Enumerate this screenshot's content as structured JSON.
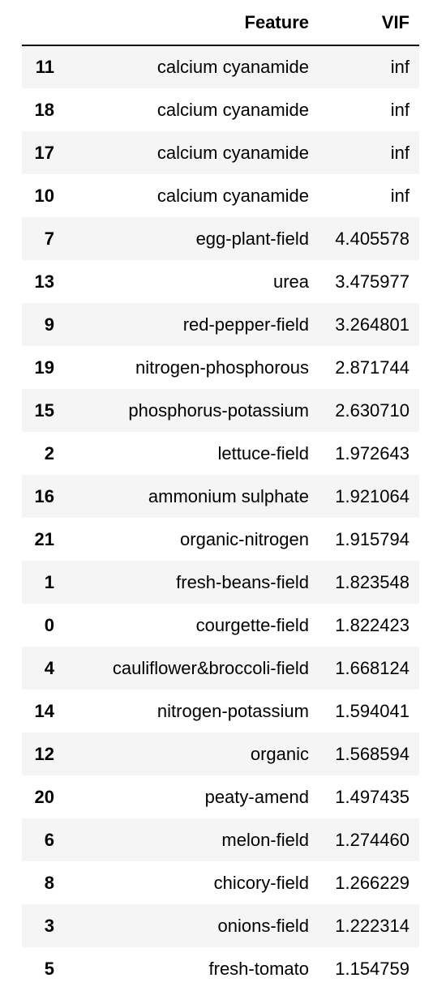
{
  "table": {
    "headers": {
      "index": "",
      "feature": "Feature",
      "vif": "VIF"
    },
    "rows": [
      {
        "index": "11",
        "feature": "calcium cyanamide",
        "vif": "inf"
      },
      {
        "index": "18",
        "feature": "calcium cyanamide",
        "vif": "inf"
      },
      {
        "index": "17",
        "feature": "calcium cyanamide",
        "vif": "inf"
      },
      {
        "index": "10",
        "feature": "calcium cyanamide",
        "vif": "inf"
      },
      {
        "index": "7",
        "feature": "egg-plant-field",
        "vif": "4.405578"
      },
      {
        "index": "13",
        "feature": "urea",
        "vif": "3.475977"
      },
      {
        "index": "9",
        "feature": "red-pepper-field",
        "vif": "3.264801"
      },
      {
        "index": "19",
        "feature": "nitrogen-phosphorous",
        "vif": "2.871744"
      },
      {
        "index": "15",
        "feature": "phosphorus-potassium",
        "vif": "2.630710"
      },
      {
        "index": "2",
        "feature": "lettuce-field",
        "vif": "1.972643"
      },
      {
        "index": "16",
        "feature": "ammonium sulphate",
        "vif": "1.921064"
      },
      {
        "index": "21",
        "feature": "organic-nitrogen",
        "vif": "1.915794"
      },
      {
        "index": "1",
        "feature": "fresh-beans-field",
        "vif": "1.823548"
      },
      {
        "index": "0",
        "feature": "courgette-field",
        "vif": "1.822423"
      },
      {
        "index": "4",
        "feature": "cauliflower&broccoli-field",
        "vif": "1.668124"
      },
      {
        "index": "14",
        "feature": "nitrogen-potassium",
        "vif": "1.594041"
      },
      {
        "index": "12",
        "feature": "organic",
        "vif": "1.568594"
      },
      {
        "index": "20",
        "feature": "peaty-amend",
        "vif": "1.497435"
      },
      {
        "index": "6",
        "feature": "melon-field",
        "vif": "1.274460"
      },
      {
        "index": "8",
        "feature": "chicory-field",
        "vif": "1.266229"
      },
      {
        "index": "3",
        "feature": "onions-field",
        "vif": "1.222314"
      },
      {
        "index": "5",
        "feature": "fresh-tomato",
        "vif": "1.154759"
      }
    ]
  }
}
